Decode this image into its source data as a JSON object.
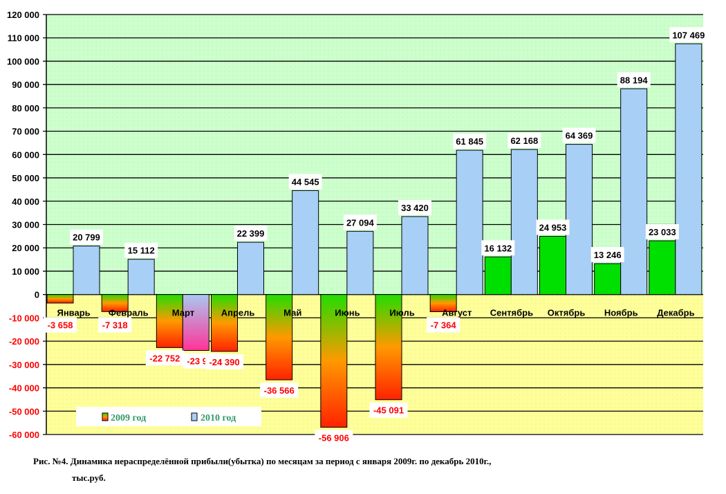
{
  "chart_data": {
    "type": "bar",
    "title": "",
    "xlabel": "",
    "ylabel": "",
    "ylim": [
      -60000,
      120000
    ],
    "ytick_step": 10000,
    "yticks": [
      "120 000",
      "110 000",
      "100 000",
      "90 000",
      "80 000",
      "70 000",
      "60 000",
      "50 000",
      "40 000",
      "30 000",
      "20 000",
      "10 000",
      "0",
      "-10 000",
      "-20 000",
      "-30 000",
      "-40 000",
      "-50 000",
      "-60 000"
    ],
    "grid": true,
    "legend_position": "bottom-left",
    "categories": [
      "Январь",
      "Февраль",
      "Март",
      "Апрель",
      "Май",
      "Июнь",
      "Июль",
      "Август",
      "Сентябрь",
      "Октябрь",
      "Ноябрь",
      "Декабрь"
    ],
    "series": [
      {
        "name": "2009 год",
        "values": [
          -3658,
          -7318,
          -22752,
          -24390,
          -36566,
          -56906,
          -45091,
          -7364,
          16132,
          24953,
          13246,
          23033
        ],
        "labels": [
          "-3 658",
          "-7 318",
          "-22 752",
          "-24 390",
          "-36 566",
          "-56 906",
          "-45 091",
          "-7 364",
          "16 132",
          "24 953",
          "13 246",
          "23 033"
        ],
        "color": "#00e000"
      },
      {
        "name": "2010 год",
        "values": [
          20799,
          15112,
          -23972,
          22399,
          44545,
          27094,
          33420,
          61845,
          62168,
          64369,
          88194,
          107469
        ],
        "labels": [
          "20 799",
          "15 112",
          "-23 972",
          "22 399",
          "44 545",
          "27 094",
          "33 420",
          "61 845",
          "62 168",
          "64 369",
          "88 194",
          "107 469"
        ],
        "color": "#a8cff5"
      }
    ]
  },
  "colors": {
    "positive_bg": "#ccffcc",
    "negative_bg": "#ffff99",
    "negative_label": "#ff0000",
    "legend_text": "#339966"
  },
  "caption": {
    "line1": "Рис. №4. Динамика нераспределённой прибыли(убытка) по месяцам  за период с января 2009г. по декабрь 2010г.,",
    "line2": "тыс.руб."
  }
}
